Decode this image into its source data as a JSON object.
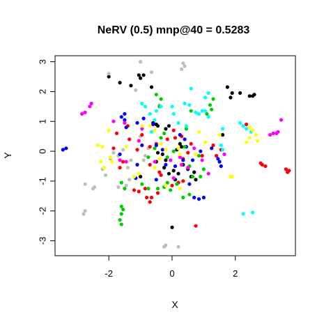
{
  "chart_data": {
    "type": "scatter",
    "title": "NeRV (0.5) mnp@40 = 0.5283",
    "xlabel": "X",
    "ylabel": "Y",
    "xlim": [
      -3.7,
      3.9
    ],
    "ylim": [
      -3.5,
      3.2
    ],
    "x_ticks": [
      -2,
      0,
      2
    ],
    "y_ticks": [
      -3,
      -2,
      -1,
      0,
      1,
      2,
      3
    ],
    "x_tick_labels": [
      "-2",
      "0",
      "2"
    ],
    "y_tick_labels": [
      "-3",
      "-2",
      "-1",
      "0",
      "1",
      "2",
      "3"
    ],
    "grid": false,
    "legend": "none",
    "series": [
      {
        "color": "#000000",
        "points": [
          [
            -2.0,
            2.5
          ],
          [
            -1.05,
            2.55
          ],
          [
            -0.9,
            2.55
          ],
          [
            -1.0,
            2.45
          ],
          [
            -1.65,
            2.3
          ],
          [
            -1.3,
            2.2
          ],
          [
            -0.65,
            2.15
          ],
          [
            1.75,
            2.15
          ],
          [
            1.9,
            1.95
          ],
          [
            1.85,
            1.8
          ],
          [
            2.15,
            1.95
          ],
          [
            2.45,
            1.85
          ],
          [
            2.55,
            1.85
          ],
          [
            2.6,
            1.9
          ],
          [
            -0.6,
            0.95
          ],
          [
            -0.5,
            0.9
          ],
          [
            -0.45,
            0.85
          ],
          [
            -0.1,
            0.85
          ],
          [
            -0.2,
            0.75
          ],
          [
            1.6,
            0.55
          ],
          [
            0.25,
            0.25
          ],
          [
            0.3,
            0.15
          ],
          [
            0.15,
            0.05
          ],
          [
            -0.45,
            -0.05
          ],
          [
            -0.3,
            -0.1
          ],
          [
            -0.2,
            -0.3
          ],
          [
            0.35,
            -0.45
          ],
          [
            -0.25,
            -0.55
          ],
          [
            0.05,
            -0.65
          ],
          [
            -0.1,
            -0.75
          ],
          [
            0.2,
            -0.75
          ],
          [
            0.5,
            -0.6
          ],
          [
            0.7,
            -0.7
          ],
          [
            0.6,
            -0.85
          ],
          [
            0.75,
            -0.95
          ],
          [
            -1.0,
            -0.85
          ],
          [
            0.1,
            -0.95
          ],
          [
            0.0,
            -2.55
          ],
          [
            -0.5,
            -0.35
          ]
        ]
      },
      {
        "color": "#BEBEBE",
        "points": [
          -1.0,
          3.0
        ]
      },
      {
        "color": "#BEBEBE",
        "points": [
          [
            -2.0,
            2.6
          ],
          [
            -0.65,
            2.65
          ],
          [
            0.35,
            2.95
          ],
          [
            0.4,
            2.85
          ],
          [
            0.3,
            2.75
          ],
          [
            -1.15,
            2.05
          ],
          [
            -0.4,
            1.55
          ],
          [
            -0.95,
            1.6
          ],
          [
            -2.45,
            -1.2
          ],
          [
            -2.5,
            -1.25
          ],
          [
            -2.75,
            -1.1
          ],
          [
            -2.75,
            -2.0
          ],
          [
            -2.8,
            -2.1
          ],
          [
            -2.1,
            -0.8
          ],
          [
            -2.2,
            -0.6
          ],
          [
            -1.95,
            -0.25
          ],
          [
            -1.85,
            -0.05
          ],
          [
            -1.7,
            -0.15
          ],
          [
            -1.55,
            0.05
          ],
          [
            -1.4,
            -0.55
          ],
          [
            -1.35,
            -0.95
          ],
          [
            -1.45,
            -1.15
          ],
          [
            -1.7,
            -1.2
          ],
          [
            -1.3,
            -0.3
          ],
          [
            -0.9,
            -0.3
          ],
          [
            -0.75,
            0.1
          ],
          [
            -1.0,
            0.5
          ],
          [
            -0.85,
            -0.15
          ],
          [
            -0.2,
            -3.15
          ],
          [
            -0.25,
            -3.2
          ],
          [
            0.2,
            -3.2
          ]
        ]
      },
      {
        "color": "#FF0000",
        "points": [
          [
            2.35,
            0.9
          ],
          [
            -1.4,
            0.85
          ],
          [
            -1.75,
            0.6
          ],
          [
            -1.35,
            0.4
          ],
          [
            -0.95,
            0.55
          ],
          [
            -0.7,
            0.15
          ],
          [
            -0.5,
            0.25
          ],
          [
            -0.15,
            0.4
          ],
          [
            0.1,
            0.45
          ],
          [
            0.3,
            0.5
          ],
          [
            0.05,
            0.7
          ],
          [
            -1.1,
            0.05
          ],
          [
            -1.55,
            -0.35
          ],
          [
            -0.7,
            -0.45
          ],
          [
            -0.4,
            -0.7
          ],
          [
            -0.35,
            -0.8
          ],
          [
            0.35,
            -0.25
          ],
          [
            0.5,
            -0.05
          ],
          [
            0.95,
            -0.15
          ],
          [
            1.4,
            -0.15
          ],
          [
            1.3,
            0.2
          ],
          [
            1.55,
            0.05
          ],
          [
            -1.2,
            -1.3
          ],
          [
            -1.05,
            -1.35
          ],
          [
            -0.85,
            -1.25
          ],
          [
            -0.8,
            -1.55
          ],
          [
            -0.7,
            -1.7
          ],
          [
            -0.65,
            -1.55
          ],
          [
            -0.45,
            -1.4
          ],
          [
            0.0,
            -1.15
          ],
          [
            0.2,
            -1.05
          ],
          [
            0.35,
            -1.0
          ],
          [
            2.8,
            -0.4
          ],
          [
            2.85,
            -0.45
          ],
          [
            2.95,
            -0.5
          ],
          [
            3.6,
            -0.6
          ],
          [
            3.7,
            -0.65
          ],
          [
            3.65,
            -0.7
          ],
          [
            0.75,
            -2.5
          ],
          [
            -1.65,
            -0.55
          ],
          [
            -1.85,
            0.1
          ],
          [
            0.6,
            0.25
          ]
        ]
      },
      {
        "color": "#0000FF",
        "points": [
          [
            -3.45,
            0.05
          ],
          [
            -3.35,
            0.1
          ],
          [
            -1.5,
            1.25
          ],
          [
            -1.6,
            1.15
          ],
          [
            -1.5,
            1.05
          ],
          [
            -1.45,
            0.8
          ],
          [
            -1.1,
            0.95
          ],
          [
            -0.9,
            1.1
          ],
          [
            -0.6,
            0.9
          ],
          [
            0.25,
            0.55
          ],
          [
            0.4,
            0.4
          ],
          [
            -0.95,
            0.2
          ],
          [
            -0.5,
            0.2
          ],
          [
            -0.3,
            0.05
          ],
          [
            0.45,
            0.15
          ],
          [
            0.9,
            0.0
          ],
          [
            1.25,
            0.1
          ],
          [
            1.5,
            -0.35
          ],
          [
            1.55,
            -0.5
          ],
          [
            1.45,
            -0.25
          ],
          [
            -1.65,
            -0.1
          ],
          [
            -1.1,
            -0.45
          ],
          [
            -0.2,
            -0.45
          ],
          [
            0.1,
            -0.5
          ],
          [
            0.55,
            -1.1
          ],
          [
            0.7,
            -1.55
          ],
          [
            0.85,
            -1.6
          ],
          [
            1.0,
            -1.55
          ],
          [
            -1.15,
            -0.9
          ],
          [
            -0.5,
            -0.95
          ],
          [
            0.35,
            -0.3
          ],
          [
            0.65,
            -0.3
          ]
        ]
      },
      {
        "color": "#00CD00",
        "points": [
          [
            -0.5,
            1.9
          ],
          [
            -0.35,
            1.75
          ],
          [
            -0.4,
            1.5
          ],
          [
            1.3,
            1.75
          ],
          [
            1.2,
            1.55
          ],
          [
            1.25,
            1.4
          ],
          [
            1.1,
            1.25
          ],
          [
            0.6,
            1.35
          ],
          [
            -0.35,
            0.45
          ],
          [
            -0.25,
            0.6
          ],
          [
            0.45,
            0.75
          ],
          [
            -0.55,
            0.1
          ],
          [
            -0.15,
            -0.2
          ],
          [
            0.85,
            -0.15
          ],
          [
            0.55,
            -0.5
          ],
          [
            0.65,
            -0.85
          ],
          [
            -1.6,
            -1.05
          ],
          [
            -1.5,
            -1.25
          ],
          [
            -1.6,
            -1.85
          ],
          [
            -1.55,
            -1.95
          ],
          [
            -1.6,
            -2.1
          ],
          [
            -1.65,
            -2.3
          ],
          [
            -1.6,
            -2.45
          ],
          [
            -0.95,
            -1.1
          ],
          [
            -0.75,
            -1.25
          ],
          [
            -0.45,
            -1.25
          ],
          [
            -0.25,
            -1.2
          ],
          [
            -0.15,
            -1.05
          ],
          [
            -0.05,
            -1.3
          ],
          [
            0.15,
            -1.1
          ],
          [
            0.35,
            -1.55
          ],
          [
            0.55,
            -1.45
          ],
          [
            0.9,
            -0.85
          ],
          [
            1.0,
            -0.6
          ],
          [
            0.4,
            0.15
          ],
          [
            0.05,
            0.0
          ],
          [
            -0.75,
            -0.2
          ]
        ]
      },
      {
        "color": "#00FFFF",
        "points": [
          [
            0.6,
            2.1
          ],
          [
            1.05,
            1.8
          ],
          [
            1.15,
            1.95
          ],
          [
            -0.95,
            1.6
          ],
          [
            -0.85,
            1.5
          ],
          [
            -0.7,
            1.25
          ],
          [
            -0.5,
            1.35
          ],
          [
            -0.35,
            1.5
          ],
          [
            0.0,
            1.5
          ],
          [
            0.05,
            1.25
          ],
          [
            0.4,
            1.6
          ],
          [
            0.55,
            1.55
          ],
          [
            0.75,
            1.3
          ],
          [
            0.85,
            1.25
          ],
          [
            0.95,
            1.35
          ],
          [
            1.05,
            1.35
          ],
          [
            1.15,
            1.15
          ],
          [
            -0.55,
            1.05
          ],
          [
            0.2,
            0.95
          ],
          [
            0.45,
            0.85
          ],
          [
            1.6,
            0.75
          ],
          [
            2.15,
            0.95
          ],
          [
            2.25,
            0.85
          ],
          [
            2.35,
            0.75
          ],
          [
            2.5,
            0.65
          ],
          [
            1.55,
            0.2
          ],
          [
            1.6,
            0.05
          ],
          [
            2.25,
            -2.1
          ],
          [
            2.55,
            -2.05
          ],
          [
            -0.65,
            0.65
          ]
        ]
      },
      {
        "color": "#FF00FF",
        "points": [
          [
            -2.55,
            1.6
          ],
          [
            -2.6,
            1.5
          ],
          [
            -2.75,
            1.3
          ],
          [
            -2.85,
            1.25
          ],
          [
            -1.85,
            1.0
          ],
          [
            -1.5,
            0.95
          ],
          [
            -0.95,
            0.75
          ],
          [
            -1.05,
            0.35
          ],
          [
            -1.45,
            -0.35
          ],
          [
            -1.65,
            -0.3
          ],
          [
            -0.55,
            -0.35
          ],
          [
            -0.05,
            -0.3
          ],
          [
            0.25,
            -0.2
          ],
          [
            0.3,
            -0.45
          ],
          [
            0.5,
            -0.55
          ],
          [
            0.7,
            0.1
          ],
          [
            1.65,
            -0.1
          ],
          [
            0.95,
            -0.3
          ],
          [
            3.1,
            0.55
          ],
          [
            3.2,
            0.6
          ],
          [
            3.3,
            0.6
          ],
          [
            3.35,
            0.65
          ],
          [
            3.45,
            1.05
          ],
          [
            1.15,
            -0.75
          ],
          [
            0.05,
            -0.9
          ]
        ]
      },
      {
        "color": "#FFFF00",
        "points": [
          [
            -2.0,
            0.7
          ],
          [
            -2.2,
            0.15
          ],
          [
            -2.35,
            0.2
          ],
          [
            -2.25,
            -0.35
          ],
          [
            -2.15,
            -0.55
          ],
          [
            -1.95,
            -0.2
          ],
          [
            -1.45,
            0.15
          ],
          [
            -0.95,
            0.85
          ],
          [
            -0.7,
            0.85
          ],
          [
            -0.55,
            0.7
          ],
          [
            -0.35,
            0.25
          ],
          [
            -0.2,
            0.05
          ],
          [
            0.2,
            0.1
          ],
          [
            0.25,
            -0.1
          ],
          [
            0.85,
            0.65
          ],
          [
            1.05,
            0.3
          ],
          [
            1.5,
            0.55
          ],
          [
            2.45,
            0.8
          ],
          [
            2.55,
            0.7
          ],
          [
            2.65,
            0.55
          ],
          [
            2.7,
            0.35
          ],
          [
            2.45,
            0.45
          ],
          [
            2.35,
            0.3
          ],
          [
            1.85,
            -0.85
          ],
          [
            1.9,
            -0.85
          ],
          [
            -1.05,
            -0.75
          ],
          [
            -1.2,
            -0.85
          ],
          [
            -0.2,
            -1.15
          ],
          [
            0.25,
            -1.25
          ],
          [
            -0.55,
            -0.55
          ],
          [
            -0.4,
            -0.25
          ],
          [
            -1.9,
            -0.35
          ],
          [
            0.75,
            -0.1
          ]
        ]
      }
    ]
  }
}
